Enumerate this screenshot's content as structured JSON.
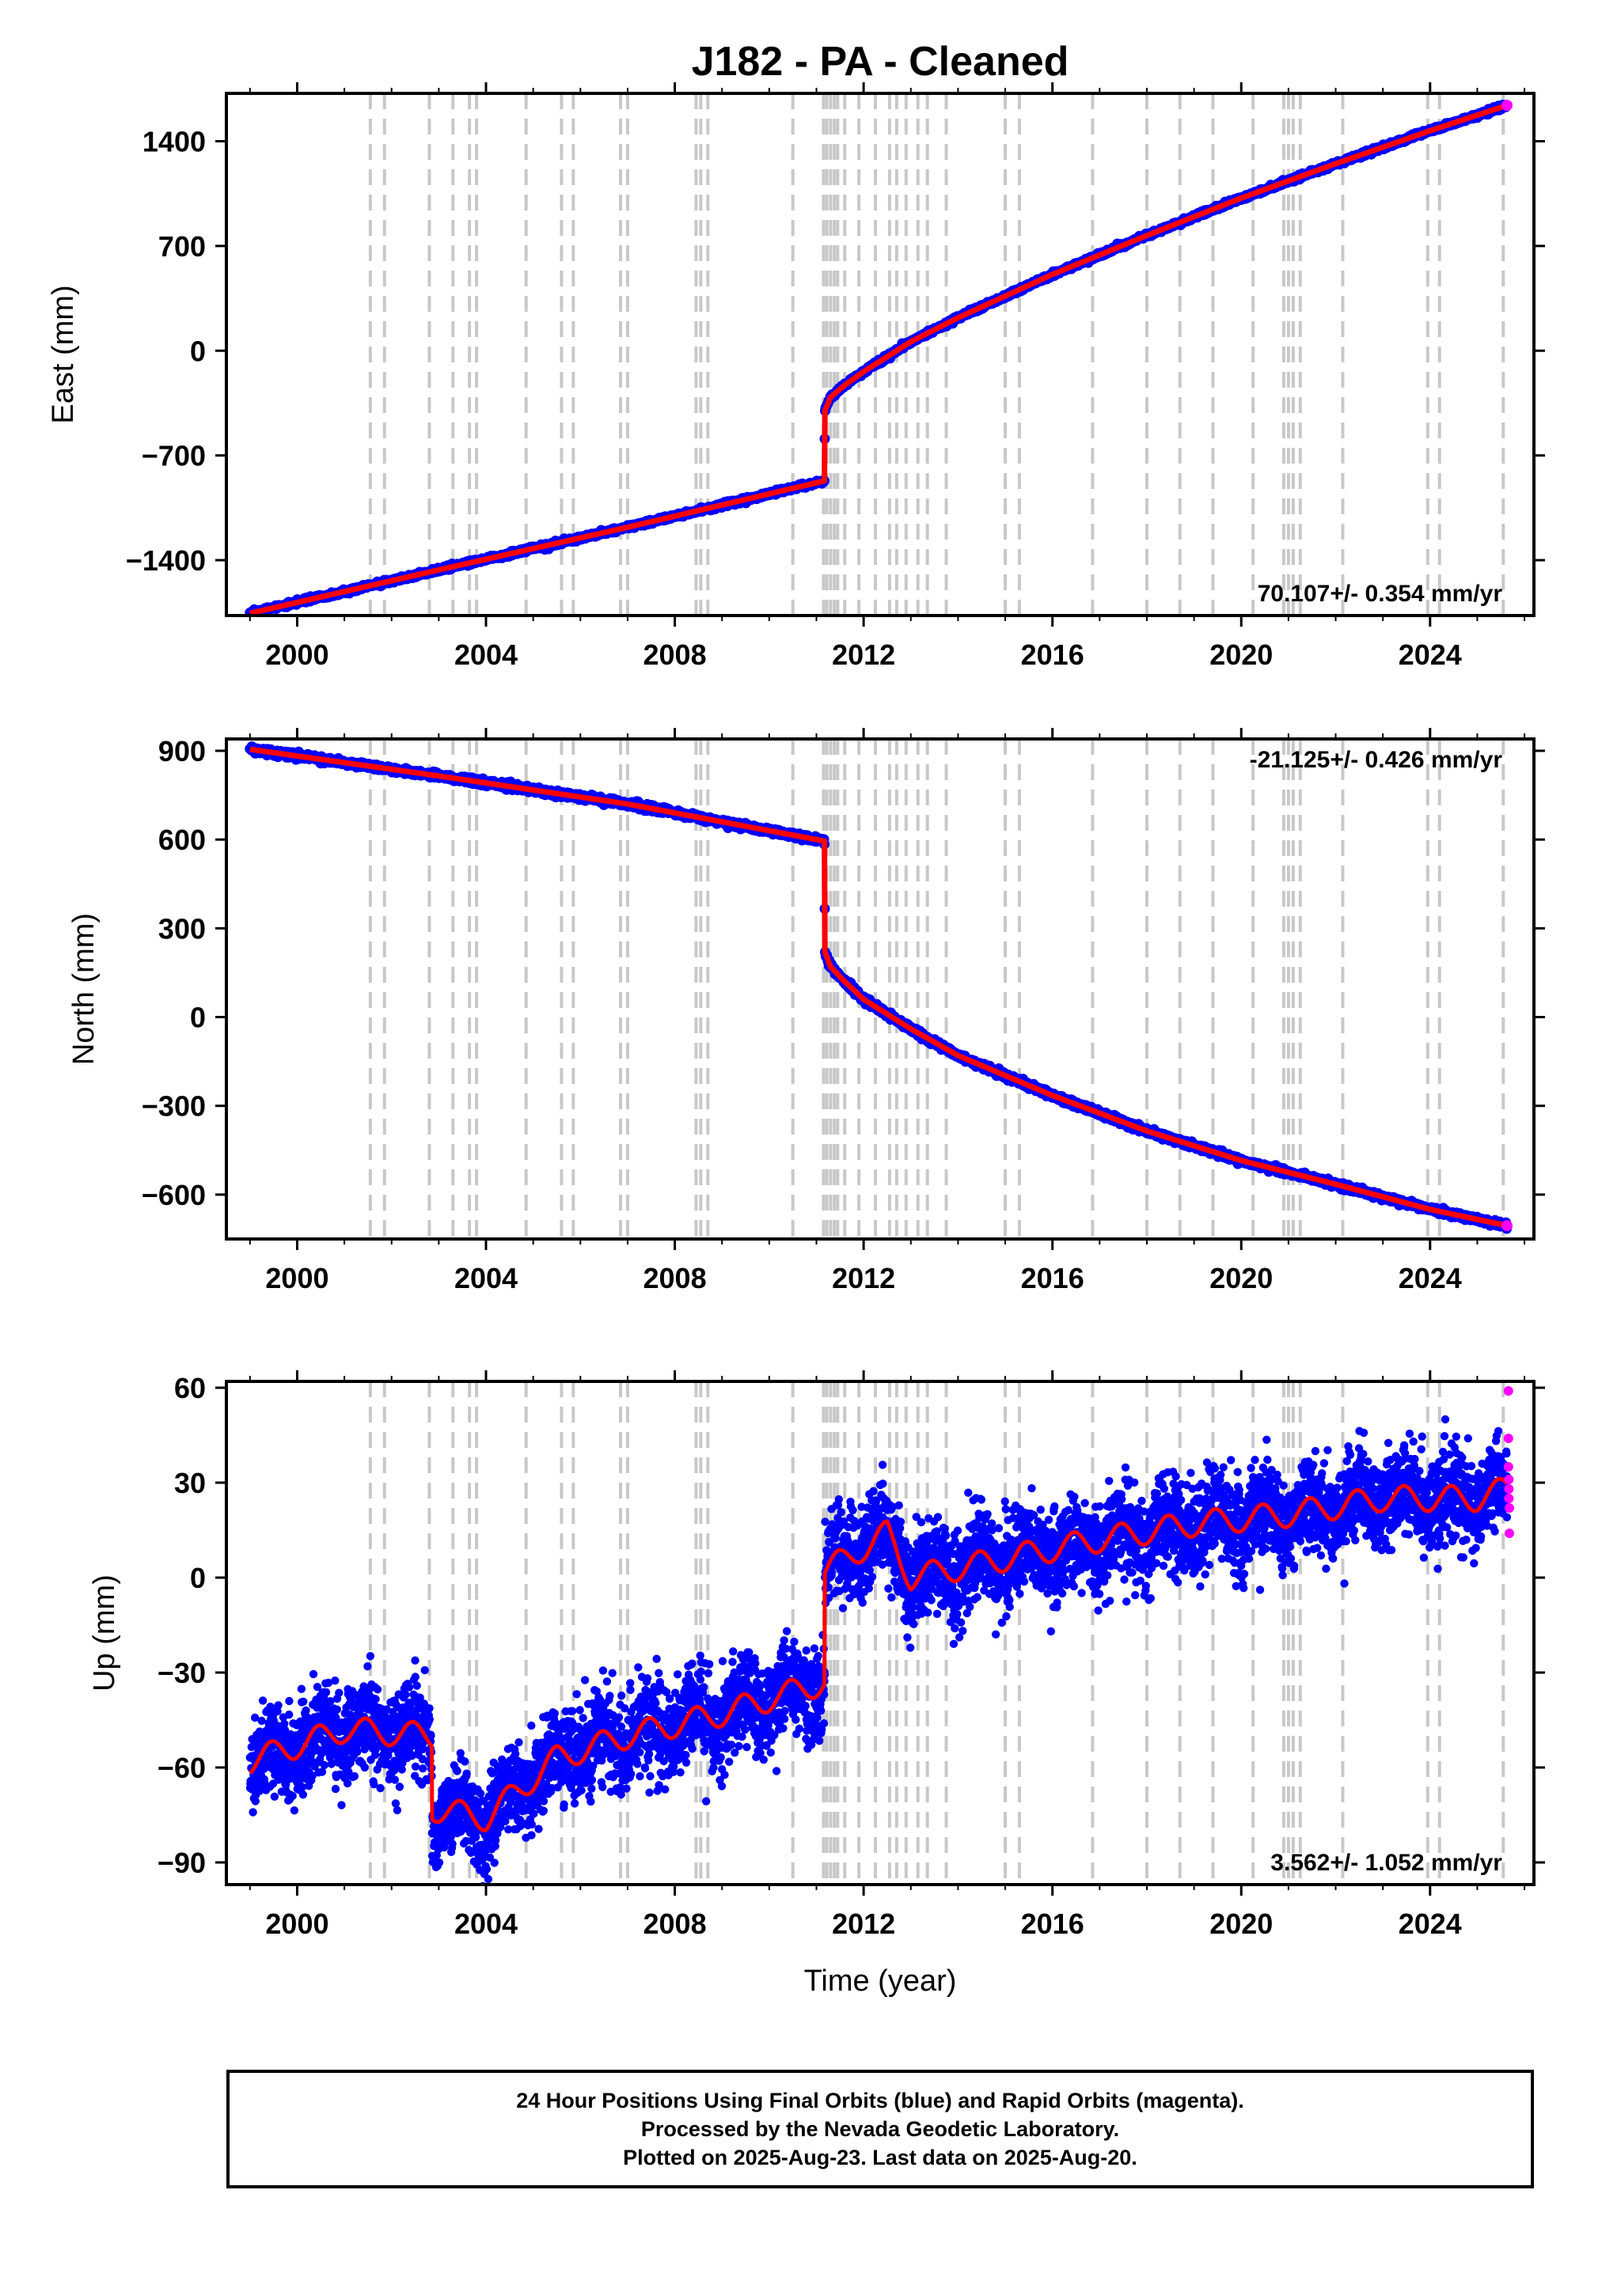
{
  "title": "J182  - PA - Cleaned",
  "colors": {
    "final_orbits": "#0000ff",
    "rapid_orbits": "#ff00ff",
    "model": "#ff0000",
    "event_lines": "#c8c8c8"
  },
  "x_ticks": [
    "2000",
    "2004",
    "2008",
    "2012",
    "2016",
    "2020",
    "2024"
  ],
  "x_axis_label": "Time (year)",
  "event_years": [
    2001.55,
    2001.85,
    2002.8,
    2003.3,
    2003.65,
    2003.8,
    2004.85,
    2005.6,
    2005.85,
    2006.85,
    2007.0,
    2008.45,
    2008.55,
    2008.7,
    2010.5,
    2011.15,
    2011.22,
    2011.3,
    2011.38,
    2011.45,
    2011.6,
    2011.9,
    2012.25,
    2012.55,
    2012.7,
    2012.9,
    2013.15,
    2013.35,
    2013.75,
    2015.0,
    2015.3,
    2016.85,
    2018.0,
    2018.7,
    2019.4,
    2020.25,
    2020.9,
    2021.0,
    2021.1,
    2021.25,
    2022.15,
    2023.95,
    2024.2,
    2025.55
  ],
  "chart_data": [
    {
      "type": "scatter",
      "panel": "east",
      "ylabel": "East (mm)",
      "xlim": [
        1998.5,
        2026.2
      ],
      "ylim": [
        -1770,
        1720
      ],
      "y_ticks": [
        1400,
        700,
        0,
        -700,
        -1400
      ],
      "y_tick_labels": [
        "1400",
        "700",
        "0",
        "−700",
        "−1400"
      ],
      "rate_label": "70.107+/- 0.354 mm/yr",
      "legend": "none",
      "series": [
        {
          "x": [
            1999.0,
            2003.0,
            2007.0,
            2011.17,
            2011.18,
            2011.3,
            2011.6,
            2012.0,
            2013.0,
            2014.0,
            2016.0,
            2018.0,
            2020.0,
            2022.0,
            2024.0,
            2025.63
          ],
          "y": [
            -1755,
            -1465,
            -1180,
            -870,
            -400,
            -310,
            -230,
            -140,
            60,
            220,
            510,
            770,
            1020,
            1250,
            1470,
            1640
          ]
        }
      ]
    },
    {
      "type": "scatter",
      "panel": "north",
      "ylabel": "North (mm)",
      "xlim": [
        1998.5,
        2026.2
      ],
      "ylim": [
        -750,
        940
      ],
      "y_ticks": [
        900,
        600,
        300,
        0,
        -300,
        -600
      ],
      "y_tick_labels": [
        "900",
        "600",
        "300",
        "0",
        "−300",
        "−600"
      ],
      "rate_label": "-21.125+/- 0.426 mm/yr",
      "legend": "none",
      "series": [
        {
          "x": [
            1999.0,
            2003.0,
            2007.0,
            2011.17,
            2011.18,
            2011.3,
            2011.6,
            2012.0,
            2013.0,
            2014.0,
            2016.0,
            2018.0,
            2020.0,
            2022.0,
            2024.0,
            2025.63
          ],
          "y": [
            905,
            815,
            720,
            595,
            220,
            170,
            120,
            60,
            -40,
            -130,
            -265,
            -385,
            -485,
            -565,
            -650,
            -705
          ]
        }
      ]
    },
    {
      "type": "scatter",
      "panel": "up",
      "ylabel": "Up (mm)",
      "xlabel": "Time (year)",
      "xlim": [
        1998.5,
        2026.2
      ],
      "ylim": [
        -97,
        62
      ],
      "y_ticks": [
        60,
        30,
        0,
        -30,
        -60,
        -90
      ],
      "y_tick_labels": [
        "60",
        "30",
        "0",
        "−30",
        "−60",
        "−90"
      ],
      "rate_label": "3.562+/- 1.052 mm/yr",
      "legend": "none",
      "series": [
        {
          "x": [
            1999.0,
            2001.0,
            2002.85,
            2002.86,
            2004.0,
            2005.5,
            2007.0,
            2009.0,
            2011.17,
            2011.18,
            2012.5,
            2013.0,
            2015.0,
            2017.0,
            2019.0,
            2021.0,
            2023.0,
            2025.0,
            2025.63
          ],
          "y": [
            -58,
            -48,
            -50,
            -73,
            -76,
            -57,
            -50,
            -43,
            -33,
            2,
            14,
            0,
            6,
            12,
            17,
            20,
            25,
            25,
            28
          ]
        }
      ],
      "rapid_points": {
        "x": [
          2025.66,
          2025.66,
          2025.66,
          2025.67,
          2025.67,
          2025.67,
          2025.68,
          2025.68
        ],
        "y": [
          59,
          44,
          35,
          31,
          28,
          25,
          22,
          14
        ]
      }
    }
  ],
  "footer": {
    "line1": "24 Hour Positions Using Final Orbits (blue) and Rapid Orbits (magenta).",
    "line2": "Processed by the Nevada Geodetic Laboratory.",
    "line3": "Plotted on 2025-Aug-23. Last data on 2025-Aug-20."
  }
}
